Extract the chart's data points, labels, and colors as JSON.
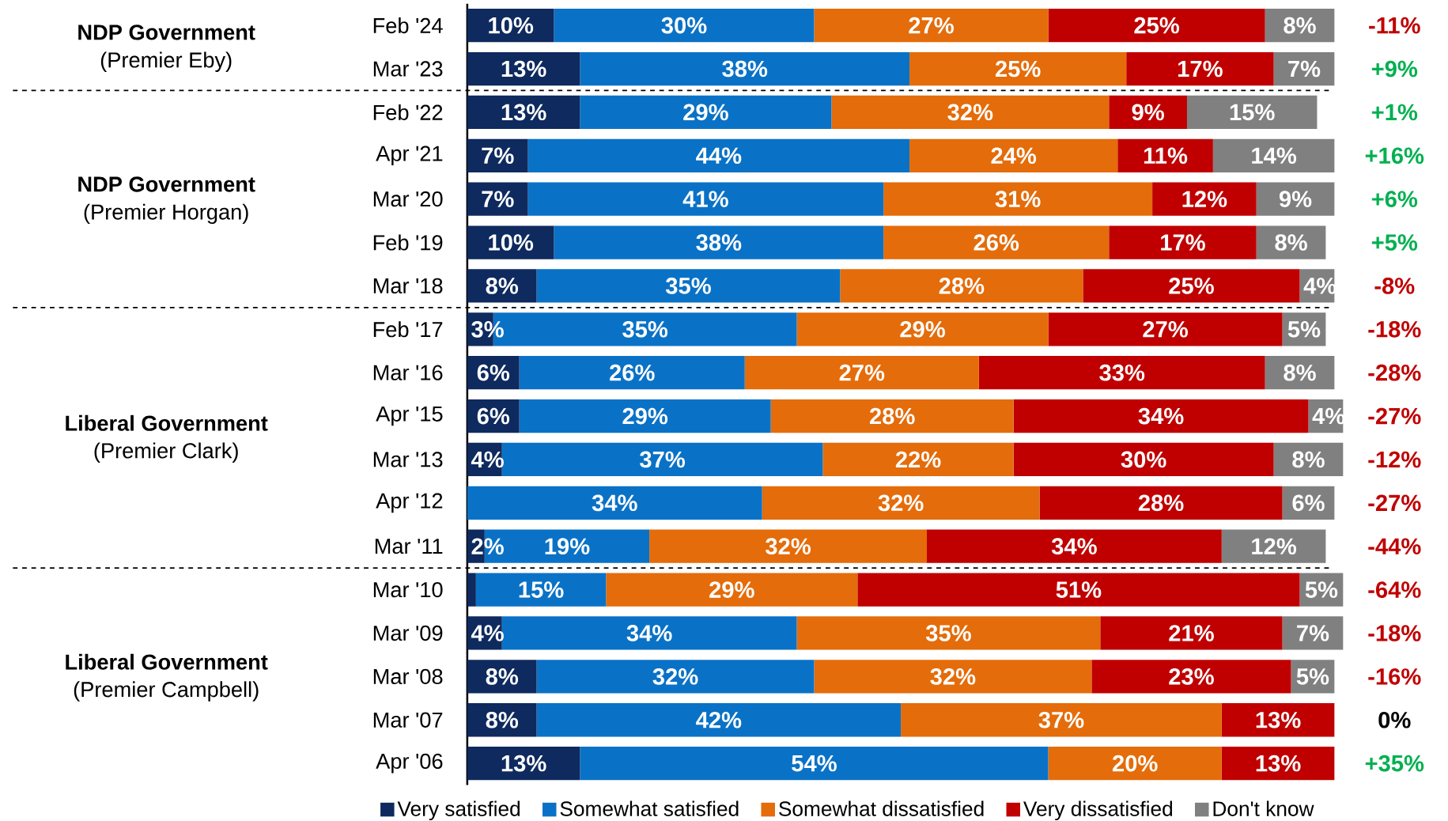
{
  "chart_data": {
    "type": "bar",
    "orientation": "horizontal",
    "stacked": true,
    "categories": [
      "Feb '24",
      "Mar '23",
      "Feb '22",
      "Apr '21",
      "Mar '20",
      "Feb '19",
      "Mar '18",
      "Feb '17",
      "Mar '16",
      "Apr '15",
      "Mar '13",
      "Apr '12",
      "Mar '11",
      "Mar '10",
      "Mar '09",
      "Mar '08",
      "Mar '07",
      "Apr '06"
    ],
    "series": [
      {
        "name": "Very satisfied",
        "color": "#0e2a5e",
        "values": [
          10,
          13,
          13,
          7,
          7,
          10,
          8,
          3,
          6,
          6,
          4,
          0,
          2,
          1,
          4,
          8,
          8,
          13
        ],
        "value_labels": [
          "10%",
          "13%",
          "13%",
          "7%",
          "7%",
          "10%",
          "8%",
          "3%",
          "6%",
          "6%",
          "4%",
          null,
          "2%",
          null,
          "4%",
          "8%",
          "8%",
          "13%"
        ]
      },
      {
        "name": "Somewhat satisfied",
        "color": "#0a72c6",
        "values": [
          30,
          38,
          29,
          44,
          41,
          38,
          35,
          35,
          26,
          29,
          37,
          34,
          19,
          15,
          34,
          32,
          42,
          54
        ],
        "value_labels": [
          "30%",
          "38%",
          "29%",
          "44%",
          "41%",
          "38%",
          "35%",
          "35%",
          "26%",
          "29%",
          "37%",
          "34%",
          "19%",
          "15%",
          "34%",
          "32%",
          "42%",
          "54%"
        ]
      },
      {
        "name": "Somewhat dissatisfied",
        "color": "#e46c0a",
        "values": [
          27,
          25,
          32,
          24,
          31,
          26,
          28,
          29,
          27,
          28,
          22,
          32,
          32,
          29,
          35,
          32,
          37,
          20
        ],
        "value_labels": [
          "27%",
          "25%",
          "32%",
          "24%",
          "31%",
          "26%",
          "28%",
          "29%",
          "27%",
          "28%",
          "22%",
          "32%",
          "32%",
          "29%",
          "35%",
          "32%",
          "37%",
          "20%"
        ]
      },
      {
        "name": "Very dissatisfied",
        "color": "#c00000",
        "values": [
          25,
          17,
          9,
          11,
          12,
          17,
          25,
          27,
          33,
          34,
          30,
          28,
          34,
          51,
          21,
          23,
          13,
          13
        ],
        "value_labels": [
          "25%",
          "17%",
          "9%",
          "11%",
          "12%",
          "17%",
          "25%",
          "27%",
          "33%",
          "34%",
          "30%",
          "28%",
          "34%",
          "51%",
          "21%",
          "23%",
          "13%",
          "13%"
        ]
      },
      {
        "name": "Don't know",
        "color": "#808080",
        "values": [
          8,
          7,
          15,
          14,
          9,
          8,
          4,
          5,
          8,
          4,
          8,
          6,
          12,
          5,
          7,
          5,
          0,
          0
        ],
        "value_labels": [
          "8%",
          "7%",
          "15%",
          "14%",
          "9%",
          "8%",
          "4%",
          "5%",
          "8%",
          "4%",
          "8%",
          "6%",
          "12%",
          "5%",
          "7%",
          "5%",
          null,
          null
        ]
      }
    ],
    "xlim": [
      0,
      101
    ],
    "tick_labels": "y",
    "legend": "bottom",
    "annotations": [
      "NDP Government",
      "(Premier Eby)",
      "NDP Government",
      "(Premier Horgan)",
      "Liberal Government",
      "(Premier Clark)",
      "Liberal Government",
      "(Premier Campbell)",
      "-11%",
      "+9%",
      "+1%",
      "+16%",
      "+6%",
      "+5%",
      "-8%",
      "-18%",
      "-28%",
      "-27%",
      "-12%",
      "-27%",
      "-44%",
      "-64%",
      "-18%",
      "-16%",
      "0%",
      "+35%"
    ]
  }
}
